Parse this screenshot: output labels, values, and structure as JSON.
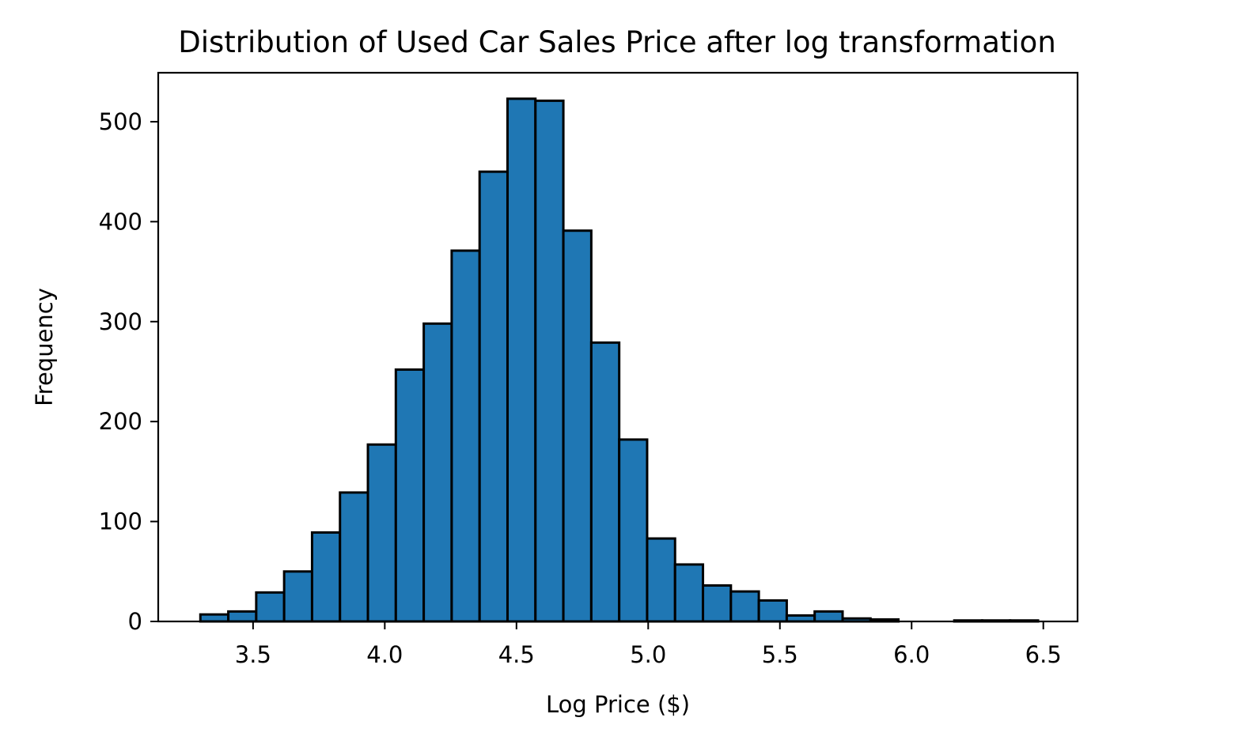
{
  "chart_data": {
    "type": "bar",
    "subtype": "histogram",
    "title": "Distribution of Used Car Sales Price after log transformation",
    "xlabel": "Log Price ($)",
    "ylabel": "Frequency",
    "xlim": [
      3.14,
      6.63
    ],
    "ylim": [
      0,
      549
    ],
    "xticks": [
      3.5,
      4.0,
      4.5,
      5.0,
      5.5,
      6.0,
      6.5
    ],
    "xtick_labels": [
      "3.5",
      "4.0",
      "4.5",
      "5.0",
      "5.5",
      "6.0",
      "6.5"
    ],
    "yticks": [
      0,
      100,
      200,
      300,
      400,
      500
    ],
    "ytick_labels": [
      "0",
      "100",
      "200",
      "300",
      "400",
      "500"
    ],
    "grid": false,
    "legend": "none",
    "bar_color": "#1f77b4",
    "edge_color": "#000000",
    "bins": [
      {
        "x0": 3.3,
        "x1": 3.406,
        "count": 7
      },
      {
        "x0": 3.406,
        "x1": 3.512,
        "count": 10
      },
      {
        "x0": 3.512,
        "x1": 3.618,
        "count": 29
      },
      {
        "x0": 3.618,
        "x1": 3.724,
        "count": 50
      },
      {
        "x0": 3.724,
        "x1": 3.83,
        "count": 89
      },
      {
        "x0": 3.83,
        "x1": 3.936,
        "count": 129
      },
      {
        "x0": 3.936,
        "x1": 4.042,
        "count": 177
      },
      {
        "x0": 4.042,
        "x1": 4.148,
        "count": 252
      },
      {
        "x0": 4.148,
        "x1": 4.254,
        "count": 298
      },
      {
        "x0": 4.254,
        "x1": 4.36,
        "count": 371
      },
      {
        "x0": 4.36,
        "x1": 4.466,
        "count": 450
      },
      {
        "x0": 4.466,
        "x1": 4.572,
        "count": 523
      },
      {
        "x0": 4.572,
        "x1": 4.678,
        "count": 521
      },
      {
        "x0": 4.678,
        "x1": 4.784,
        "count": 391
      },
      {
        "x0": 4.784,
        "x1": 4.89,
        "count": 279
      },
      {
        "x0": 4.89,
        "x1": 4.996,
        "count": 182
      },
      {
        "x0": 4.996,
        "x1": 5.102,
        "count": 83
      },
      {
        "x0": 5.102,
        "x1": 5.208,
        "count": 57
      },
      {
        "x0": 5.208,
        "x1": 5.314,
        "count": 36
      },
      {
        "x0": 5.314,
        "x1": 5.42,
        "count": 30
      },
      {
        "x0": 5.42,
        "x1": 5.526,
        "count": 21
      },
      {
        "x0": 5.526,
        "x1": 5.632,
        "count": 6
      },
      {
        "x0": 5.632,
        "x1": 5.738,
        "count": 10
      },
      {
        "x0": 5.738,
        "x1": 5.844,
        "count": 3
      },
      {
        "x0": 5.844,
        "x1": 5.95,
        "count": 2
      },
      {
        "x0": 5.95,
        "x1": 6.056,
        "count": 0
      },
      {
        "x0": 6.056,
        "x1": 6.162,
        "count": 0
      },
      {
        "x0": 6.162,
        "x1": 6.268,
        "count": 1
      },
      {
        "x0": 6.268,
        "x1": 6.374,
        "count": 1
      },
      {
        "x0": 6.374,
        "x1": 6.48,
        "count": 1
      }
    ]
  }
}
